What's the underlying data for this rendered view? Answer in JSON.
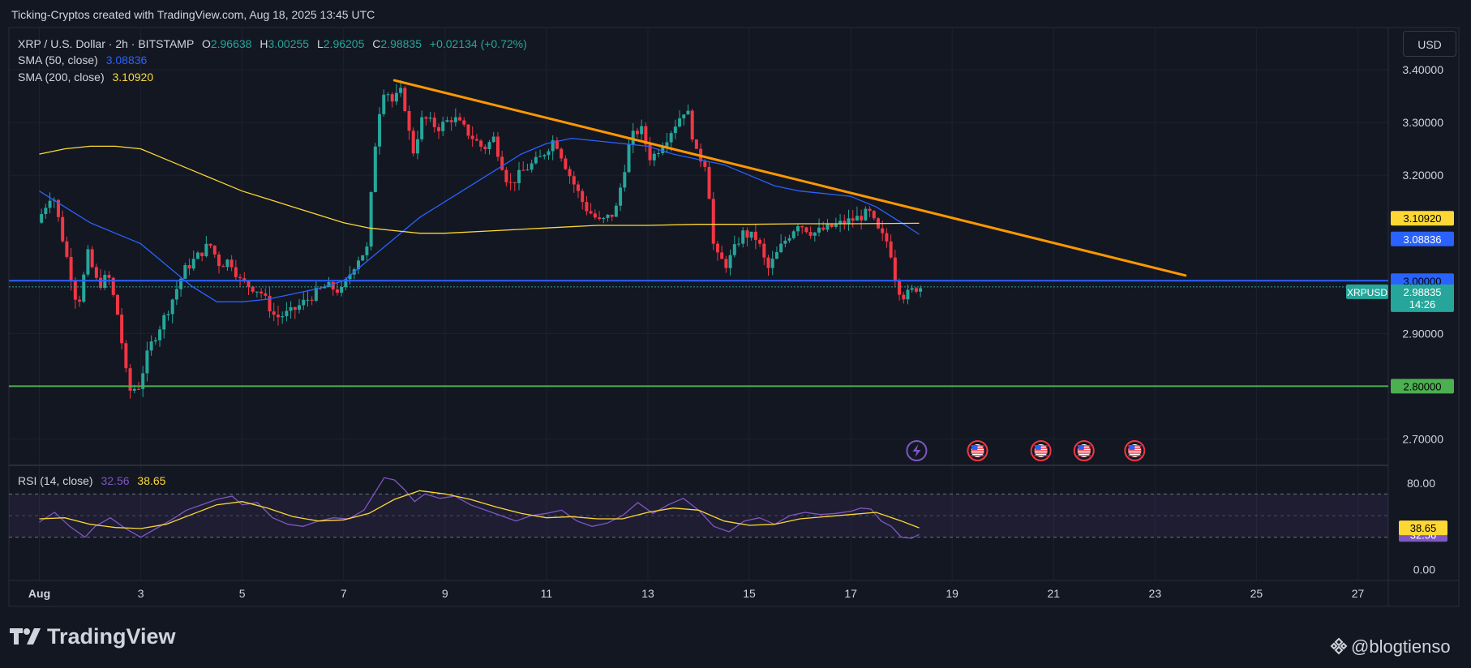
{
  "caption": "Ticking-Cryptos created with TradingView.com, Aug 18, 2025 13:45 UTC",
  "legend": {
    "symbol": "XRP / U.S. Dollar · 2h · BITSTAMP",
    "o_label": "O",
    "o_value": "2.96638",
    "h_label": "H",
    "h_value": "3.00255",
    "l_label": "L",
    "l_value": "2.96205",
    "c_label": "C",
    "c_value": "2.98835",
    "change": "+0.02134 (+0.72%)",
    "sma50_label": "SMA (50, close)",
    "sma50_value": "3.08836",
    "sma200_label": "SMA (200, close)",
    "sma200_value": "3.10920"
  },
  "currency_button": "USD",
  "rsi_legend": {
    "label": "RSI (14, close)",
    "rsi_value": "32.56",
    "ma_value": "38.65"
  },
  "branding": {
    "logo_text": "TradingView",
    "handle": "@blogtienso"
  },
  "colors": {
    "up": "#26a69a",
    "down": "#f23645",
    "sma50": "#2962ff",
    "sma200": "#fdd835",
    "trendline": "#ff9800",
    "support": "#4caf50",
    "level3": "#2962ff",
    "rsi": "#7e57c2",
    "rsi_ma": "#fdd835"
  },
  "chart_data": [
    {
      "type": "candlestick",
      "symbol": "XRPUSD",
      "ylim": [
        2.65,
        3.48
      ],
      "y_ticks": [
        "3.40000",
        "3.30000",
        "3.20000",
        "2.90000",
        "2.70000"
      ],
      "x_ticks": [
        "Aug",
        "3",
        "5",
        "7",
        "9",
        "11",
        "13",
        "15",
        "17",
        "19",
        "21",
        "23",
        "25",
        "27"
      ],
      "price_path": [
        [
          1.0,
          3.11
        ],
        [
          1.3,
          3.17
        ],
        [
          1.5,
          3.08
        ],
        [
          1.8,
          2.95
        ],
        [
          2.0,
          3.05
        ],
        [
          2.2,
          2.99
        ],
        [
          2.4,
          3.01
        ],
        [
          2.6,
          2.93
        ],
        [
          2.8,
          2.79
        ],
        [
          3.0,
          2.8
        ],
        [
          3.2,
          2.87
        ],
        [
          3.6,
          2.95
        ],
        [
          3.9,
          3.02
        ],
        [
          4.1,
          3.04
        ],
        [
          4.4,
          3.07
        ],
        [
          4.6,
          3.03
        ],
        [
          4.8,
          3.04
        ],
        [
          5.0,
          3.0
        ],
        [
          5.4,
          2.98
        ],
        [
          5.7,
          2.93
        ],
        [
          6.0,
          2.94
        ],
        [
          6.4,
          2.97
        ],
        [
          6.7,
          2.99
        ],
        [
          7.0,
          2.98
        ],
        [
          7.3,
          3.04
        ],
        [
          7.5,
          3.06
        ],
        [
          7.7,
          3.3
        ],
        [
          7.85,
          3.37
        ],
        [
          8.0,
          3.34
        ],
        [
          8.2,
          3.36
        ],
        [
          8.4,
          3.24
        ],
        [
          8.6,
          3.31
        ],
        [
          8.9,
          3.29
        ],
        [
          9.2,
          3.31
        ],
        [
          9.5,
          3.28
        ],
        [
          9.8,
          3.25
        ],
        [
          10.0,
          3.27
        ],
        [
          10.3,
          3.18
        ],
        [
          10.6,
          3.21
        ],
        [
          10.9,
          3.23
        ],
        [
          11.2,
          3.27
        ],
        [
          11.5,
          3.2
        ],
        [
          11.8,
          3.14
        ],
        [
          12.1,
          3.11
        ],
        [
          12.4,
          3.13
        ],
        [
          12.7,
          3.27
        ],
        [
          12.9,
          3.29
        ],
        [
          13.1,
          3.23
        ],
        [
          13.4,
          3.27
        ],
        [
          13.6,
          3.3
        ],
        [
          13.8,
          3.33
        ],
        [
          14.0,
          3.24
        ],
        [
          14.2,
          3.22
        ],
        [
          14.35,
          3.05
        ],
        [
          14.6,
          3.03
        ],
        [
          14.9,
          3.09
        ],
        [
          15.2,
          3.08
        ],
        [
          15.4,
          3.02
        ],
        [
          15.7,
          3.07
        ],
        [
          16.0,
          3.11
        ],
        [
          16.3,
          3.09
        ],
        [
          16.6,
          3.1
        ],
        [
          16.9,
          3.11
        ],
        [
          17.2,
          3.12
        ],
        [
          17.4,
          3.13
        ],
        [
          17.6,
          3.09
        ],
        [
          17.8,
          3.07
        ],
        [
          17.95,
          2.99
        ],
        [
          18.1,
          2.97
        ],
        [
          18.35,
          2.988
        ]
      ],
      "last_price": {
        "symbol": "XRPUSD",
        "value": "2.98835",
        "countdown": "14:26"
      },
      "indicators": [
        {
          "name": "SMA (50, close)",
          "last": "3.08836",
          "color": "#2962ff",
          "path": [
            [
              1.0,
              3.17
            ],
            [
              1.5,
              3.14
            ],
            [
              2.0,
              3.11
            ],
            [
              2.5,
              3.09
            ],
            [
              3.0,
              3.07
            ],
            [
              3.5,
              3.03
            ],
            [
              4.0,
              2.99
            ],
            [
              4.5,
              2.96
            ],
            [
              5.0,
              2.96
            ],
            [
              5.5,
              2.965
            ],
            [
              6.0,
              2.975
            ],
            [
              6.5,
              2.985
            ],
            [
              7.0,
              3.0
            ],
            [
              7.5,
              3.04
            ],
            [
              8.0,
              3.08
            ],
            [
              8.5,
              3.12
            ],
            [
              9.0,
              3.15
            ],
            [
              9.5,
              3.18
            ],
            [
              10.0,
              3.21
            ],
            [
              10.5,
              3.24
            ],
            [
              11.0,
              3.26
            ],
            [
              11.5,
              3.27
            ],
            [
              12.0,
              3.265
            ],
            [
              12.5,
              3.26
            ],
            [
              13.0,
              3.255
            ],
            [
              13.5,
              3.24
            ],
            [
              14.0,
              3.23
            ],
            [
              14.5,
              3.22
            ],
            [
              15.0,
              3.2
            ],
            [
              15.5,
              3.18
            ],
            [
              16.0,
              3.17
            ],
            [
              16.5,
              3.165
            ],
            [
              17.0,
              3.16
            ],
            [
              17.5,
              3.14
            ],
            [
              18.0,
              3.11
            ],
            [
              18.35,
              3.088
            ]
          ]
        },
        {
          "name": "SMA (200, close)",
          "last": "3.10920",
          "color": "#fdd835",
          "path": [
            [
              1.0,
              3.24
            ],
            [
              1.5,
              3.25
            ],
            [
              2.0,
              3.255
            ],
            [
              2.5,
              3.255
            ],
            [
              3.0,
              3.25
            ],
            [
              3.5,
              3.23
            ],
            [
              4.0,
              3.21
            ],
            [
              4.5,
              3.19
            ],
            [
              5.0,
              3.17
            ],
            [
              5.5,
              3.155
            ],
            [
              6.0,
              3.14
            ],
            [
              6.5,
              3.125
            ],
            [
              7.0,
              3.11
            ],
            [
              7.5,
              3.1
            ],
            [
              8.0,
              3.095
            ],
            [
              8.5,
              3.09
            ],
            [
              9.0,
              3.09
            ],
            [
              10.0,
              3.095
            ],
            [
              11.0,
              3.1
            ],
            [
              12.0,
              3.105
            ],
            [
              13.0,
              3.105
            ],
            [
              14.0,
              3.107
            ],
            [
              15.0,
              3.107
            ],
            [
              16.0,
              3.108
            ],
            [
              17.0,
              3.108
            ],
            [
              18.35,
              3.109
            ]
          ]
        }
      ],
      "trendline": {
        "from": [
          8.0,
          3.38
        ],
        "to": [
          23.6,
          3.01
        ]
      },
      "horizontal_levels": [
        {
          "value": 3.0,
          "label": "3.00000",
          "color": "#2962ff"
        },
        {
          "value": 2.8,
          "label": "2.80000",
          "color": "#4caf50"
        }
      ],
      "price_tags": [
        {
          "value": 3.1092,
          "label": "3.10920",
          "color": "#fdd835"
        },
        {
          "value": 3.08836,
          "label": "3.08836",
          "color": "#2962ff"
        }
      ],
      "event_markers": [
        {
          "x": 18.3,
          "icon": "lightning-icon"
        },
        {
          "x": 19.5,
          "icon": "us-flag-icon"
        },
        {
          "x": 20.75,
          "icon": "us-flag-icon"
        },
        {
          "x": 21.6,
          "icon": "us-flag-icon"
        },
        {
          "x": 22.6,
          "icon": "us-flag-icon"
        }
      ]
    },
    {
      "type": "line",
      "title": "RSI (14, close)",
      "ylim": [
        -10,
        95
      ],
      "y_ticks": [
        "80.00",
        "0.00"
      ],
      "bands": [
        30,
        70
      ],
      "series": [
        {
          "name": "RSI",
          "last": "32.56",
          "color": "#7e57c2",
          "values": [
            [
              1.0,
              44
            ],
            [
              1.3,
              53
            ],
            [
              1.6,
              40
            ],
            [
              1.9,
              30
            ],
            [
              2.1,
              40
            ],
            [
              2.4,
              48
            ],
            [
              2.7,
              38
            ],
            [
              3.0,
              30
            ],
            [
              3.3,
              38
            ],
            [
              3.6,
              46
            ],
            [
              3.9,
              55
            ],
            [
              4.2,
              60
            ],
            [
              4.5,
              65
            ],
            [
              4.8,
              68
            ],
            [
              5.0,
              60
            ],
            [
              5.3,
              62
            ],
            [
              5.6,
              48
            ],
            [
              5.9,
              42
            ],
            [
              6.2,
              40
            ],
            [
              6.5,
              45
            ],
            [
              6.8,
              48
            ],
            [
              7.1,
              47
            ],
            [
              7.4,
              55
            ],
            [
              7.6,
              70
            ],
            [
              7.8,
              85
            ],
            [
              8.0,
              83
            ],
            [
              8.2,
              74
            ],
            [
              8.4,
              63
            ],
            [
              8.6,
              70
            ],
            [
              8.9,
              66
            ],
            [
              9.2,
              68
            ],
            [
              9.5,
              60
            ],
            [
              9.8,
              55
            ],
            [
              10.1,
              50
            ],
            [
              10.4,
              45
            ],
            [
              10.7,
              50
            ],
            [
              11.0,
              52
            ],
            [
              11.3,
              55
            ],
            [
              11.6,
              45
            ],
            [
              11.9,
              40
            ],
            [
              12.2,
              43
            ],
            [
              12.5,
              50
            ],
            [
              12.8,
              62
            ],
            [
              13.1,
              52
            ],
            [
              13.4,
              60
            ],
            [
              13.7,
              66
            ],
            [
              14.0,
              55
            ],
            [
              14.3,
              40
            ],
            [
              14.6,
              35
            ],
            [
              14.9,
              45
            ],
            [
              15.2,
              48
            ],
            [
              15.5,
              42
            ],
            [
              15.8,
              50
            ],
            [
              16.1,
              53
            ],
            [
              16.4,
              51
            ],
            [
              16.7,
              52
            ],
            [
              17.0,
              54
            ],
            [
              17.2,
              57
            ],
            [
              17.4,
              56
            ],
            [
              17.6,
              45
            ],
            [
              17.8,
              40
            ],
            [
              18.0,
              30
            ],
            [
              18.2,
              29
            ],
            [
              18.35,
              32.56
            ]
          ]
        },
        {
          "name": "RSI MA",
          "last": "38.65",
          "color": "#fdd835",
          "values": [
            [
              1.0,
              47
            ],
            [
              1.5,
              48
            ],
            [
              2.0,
              42
            ],
            [
              2.5,
              39
            ],
            [
              3.0,
              38
            ],
            [
              3.5,
              42
            ],
            [
              4.0,
              51
            ],
            [
              4.5,
              60
            ],
            [
              5.0,
              63
            ],
            [
              5.5,
              57
            ],
            [
              6.0,
              49
            ],
            [
              6.5,
              45
            ],
            [
              7.0,
              46
            ],
            [
              7.5,
              52
            ],
            [
              8.0,
              65
            ],
            [
              8.5,
              73
            ],
            [
              9.0,
              70
            ],
            [
              9.5,
              65
            ],
            [
              10.0,
              58
            ],
            [
              10.5,
              52
            ],
            [
              11.0,
              48
            ],
            [
              11.5,
              49
            ],
            [
              12.0,
              47
            ],
            [
              12.5,
              47
            ],
            [
              13.0,
              53
            ],
            [
              13.5,
              57
            ],
            [
              14.0,
              55
            ],
            [
              14.5,
              45
            ],
            [
              15.0,
              41
            ],
            [
              15.5,
              42
            ],
            [
              16.0,
              47
            ],
            [
              16.5,
              49
            ],
            [
              17.0,
              51
            ],
            [
              17.5,
              53
            ],
            [
              18.0,
              45
            ],
            [
              18.35,
              38.65
            ]
          ]
        }
      ]
    }
  ]
}
